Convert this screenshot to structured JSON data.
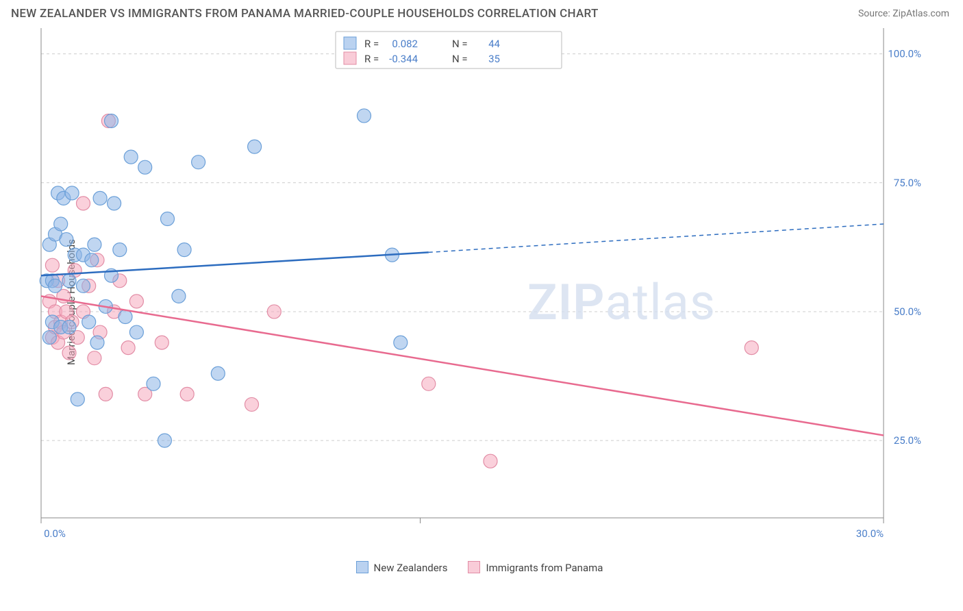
{
  "title": "NEW ZEALANDER VS IMMIGRANTS FROM PANAMA MARRIED-COUPLE HOUSEHOLDS CORRELATION CHART",
  "source": "Source: ZipAtlas.com",
  "ylabel": "Married-couple Households",
  "watermark_a": "ZIP",
  "watermark_b": "atlas",
  "chart": {
    "type": "scatter",
    "xlim": [
      0,
      30
    ],
    "ylim": [
      10,
      105
    ],
    "xticks": [
      {
        "v": 0.0,
        "label": "0.0%"
      },
      {
        "v": 30.0,
        "label": "30.0%"
      }
    ],
    "yticks": [
      {
        "v": 25.0,
        "label": "25.0%"
      },
      {
        "v": 50.0,
        "label": "50.0%"
      },
      {
        "v": 75.0,
        "label": "75.0%"
      },
      {
        "v": 100.0,
        "label": "100.0%"
      }
    ],
    "grid_color": "#cccccc",
    "background": "#ffffff",
    "x_axis_ticks_minor": [
      0,
      13.5,
      30
    ],
    "point_radius": 10,
    "series": [
      {
        "name": "New Zealanders",
        "color_fill": "rgba(140,180,230,0.55)",
        "color_stroke": "#6a9fd8",
        "R": "0.082",
        "N": "44",
        "trend": {
          "x1": 0,
          "y1": 57,
          "x2_solid": 13.8,
          "y2_solid": 61.5,
          "x2": 30,
          "y2": 67,
          "line_color": "#2c6cbf"
        },
        "points": [
          [
            0.2,
            56
          ],
          [
            0.3,
            63
          ],
          [
            0.3,
            45
          ],
          [
            0.4,
            48
          ],
          [
            0.4,
            56
          ],
          [
            0.5,
            55
          ],
          [
            0.5,
            65
          ],
          [
            0.6,
            73
          ],
          [
            0.7,
            47
          ],
          [
            0.7,
            67
          ],
          [
            0.8,
            72
          ],
          [
            0.9,
            64
          ],
          [
            1.0,
            47
          ],
          [
            1.0,
            56
          ],
          [
            1.1,
            73
          ],
          [
            1.2,
            61
          ],
          [
            1.3,
            33
          ],
          [
            1.5,
            55
          ],
          [
            1.5,
            61
          ],
          [
            1.7,
            48
          ],
          [
            1.8,
            60
          ],
          [
            1.9,
            63
          ],
          [
            2.0,
            44
          ],
          [
            2.1,
            72
          ],
          [
            2.3,
            51
          ],
          [
            2.5,
            57
          ],
          [
            2.5,
            87
          ],
          [
            2.6,
            71
          ],
          [
            2.8,
            62
          ],
          [
            3.0,
            49
          ],
          [
            3.2,
            80
          ],
          [
            3.4,
            46
          ],
          [
            3.7,
            78
          ],
          [
            4.0,
            36
          ],
          [
            4.4,
            25
          ],
          [
            4.5,
            68
          ],
          [
            4.9,
            53
          ],
          [
            5.1,
            62
          ],
          [
            5.6,
            79
          ],
          [
            6.3,
            38
          ],
          [
            7.6,
            82
          ],
          [
            11.5,
            88
          ],
          [
            12.8,
            44
          ],
          [
            12.5,
            61
          ]
        ]
      },
      {
        "name": "Immigrants from Panama",
        "color_fill": "rgba(245,170,190,0.55)",
        "color_stroke": "#e28ca5",
        "R": "-0.344",
        "N": "35",
        "trend": {
          "x1": 0,
          "y1": 53,
          "x2_solid": 30,
          "y2_solid": 26,
          "x2": 30,
          "y2": 26,
          "line_color": "#e86a8f"
        },
        "points": [
          [
            0.3,
            52
          ],
          [
            0.4,
            45
          ],
          [
            0.4,
            59
          ],
          [
            0.5,
            47
          ],
          [
            0.5,
            50
          ],
          [
            0.6,
            44
          ],
          [
            0.6,
            56
          ],
          [
            0.7,
            48
          ],
          [
            0.8,
            46
          ],
          [
            0.8,
            53
          ],
          [
            0.9,
            50
          ],
          [
            1.0,
            42
          ],
          [
            1.1,
            48
          ],
          [
            1.2,
            58
          ],
          [
            1.3,
            45
          ],
          [
            1.5,
            71
          ],
          [
            1.5,
            50
          ],
          [
            1.7,
            55
          ],
          [
            1.9,
            41
          ],
          [
            2.0,
            60
          ],
          [
            2.1,
            46
          ],
          [
            2.3,
            34
          ],
          [
            2.4,
            87
          ],
          [
            2.6,
            50
          ],
          [
            2.8,
            56
          ],
          [
            3.1,
            43
          ],
          [
            3.4,
            52
          ],
          [
            3.7,
            34
          ],
          [
            4.3,
            44
          ],
          [
            5.2,
            34
          ],
          [
            7.5,
            32
          ],
          [
            8.3,
            50
          ],
          [
            13.8,
            36
          ],
          [
            16.0,
            21
          ],
          [
            25.3,
            43
          ]
        ]
      }
    ]
  },
  "stats_legend": {
    "r_label": "R =",
    "n_label": "N ="
  },
  "bottom_legend": {
    "label_a": "New Zealanders",
    "label_b": "Immigrants from Panama"
  }
}
